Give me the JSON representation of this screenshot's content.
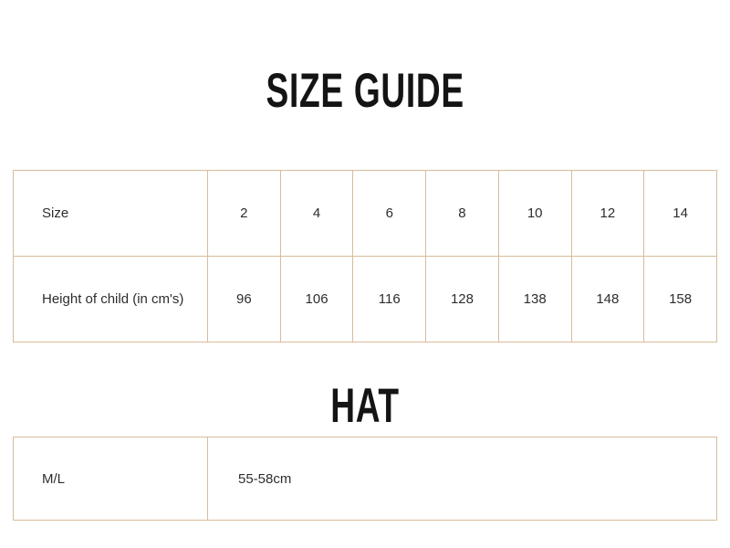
{
  "page": {
    "background_color": "#ffffff",
    "table_border_color": "#d8bc99",
    "heading_color": "#141414",
    "text_color": "#2d2d2d"
  },
  "size_guide": {
    "title": "SIZE GUIDE",
    "table": {
      "rows": [
        {
          "label": "Size",
          "values": [
            "2",
            "4",
            "6",
            "8",
            "10",
            "12",
            "14"
          ]
        },
        {
          "label": "Height of child (in cm's)",
          "values": [
            "96",
            "106",
            "116",
            "128",
            "138",
            "148",
            "158"
          ]
        }
      ]
    }
  },
  "hat": {
    "title": "HAT",
    "table": {
      "rows": [
        {
          "label": "M/L",
          "value": "55-58cm"
        }
      ]
    }
  }
}
